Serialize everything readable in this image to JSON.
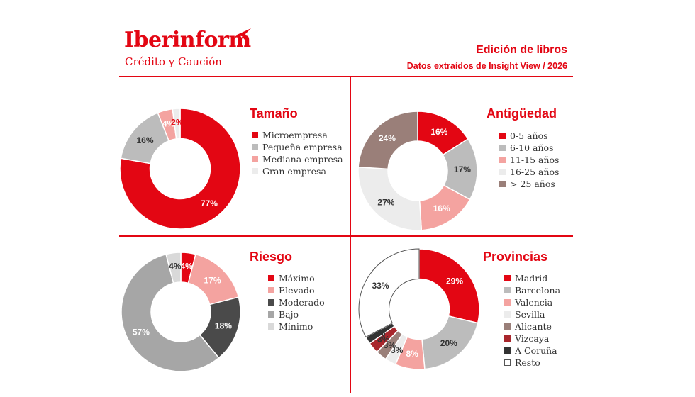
{
  "brand": {
    "name": "Iberinform",
    "tagline": "Crédito y Caución"
  },
  "header": {
    "title": "Edición de libros",
    "subtitle": "Datos extraídos de Insight View / 2026"
  },
  "colors": {
    "accent": "#e30613"
  },
  "chart_data": [
    {
      "type": "pie",
      "title": "Tamaño",
      "categories": [
        "Microempresa",
        "Pequeña empresa",
        "Mediana empresa",
        "Gran empresa"
      ],
      "values": [
        77,
        16,
        4,
        2
      ],
      "labels": [
        "77%",
        "16%",
        "4%",
        "2%"
      ],
      "colors": [
        "#e30613",
        "#bcbcbc",
        "#f4a3a0",
        "#ececec"
      ],
      "label_colors": [
        "#ffffff",
        "#333333",
        "#ffffff",
        "#e30613"
      ],
      "legend": "right"
    },
    {
      "type": "pie",
      "title": "Antigüedad",
      "categories": [
        "0-5 años",
        "6-10 años",
        "11-15 años",
        "16-25 años",
        "> 25 años"
      ],
      "values": [
        16,
        17,
        16,
        27,
        24
      ],
      "labels": [
        "16%",
        "17%",
        "16%",
        "27%",
        "24%"
      ],
      "colors": [
        "#e30613",
        "#bcbcbc",
        "#f4a3a0",
        "#ececec",
        "#9a7f79"
      ],
      "label_colors": [
        "#ffffff",
        "#333333",
        "#ffffff",
        "#333333",
        "#ffffff"
      ],
      "legend": "right"
    },
    {
      "type": "pie",
      "title": "Riesgo",
      "categories": [
        "Máximo",
        "Elevado",
        "Moderado",
        "Bajo",
        "Mínimo"
      ],
      "values": [
        4,
        17,
        18,
        57,
        4
      ],
      "labels": [
        "4%",
        "17%",
        "18%",
        "57%",
        "4%"
      ],
      "colors": [
        "#e30613",
        "#f4a3a0",
        "#4a4a4a",
        "#a6a6a6",
        "#d9d9d9"
      ],
      "label_colors": [
        "#ffffff",
        "#ffffff",
        "#ffffff",
        "#ffffff",
        "#333333"
      ],
      "legend": "right"
    },
    {
      "type": "pie",
      "title": "Provincias",
      "categories": [
        "Madrid",
        "Barcelona",
        "Valencia",
        "Sevilla",
        "Alicante",
        "Vizcaya",
        "A Coruña",
        "Resto"
      ],
      "values": [
        29,
        20,
        8,
        3,
        3,
        3,
        2,
        33
      ],
      "labels": [
        "29%",
        "20%",
        "8%",
        "3%",
        "3%",
        "3%",
        "2%",
        "33%"
      ],
      "colors": [
        "#e30613",
        "#bcbcbc",
        "#f4a3a0",
        "#ececec",
        "#9a7f79",
        "#a8262c",
        "#333333",
        "#ffffff"
      ],
      "label_colors": [
        "#ffffff",
        "#333333",
        "#ffffff",
        "#333333",
        "#333333",
        "#333333",
        "#333333",
        "#333333"
      ],
      "legend": "right"
    }
  ]
}
